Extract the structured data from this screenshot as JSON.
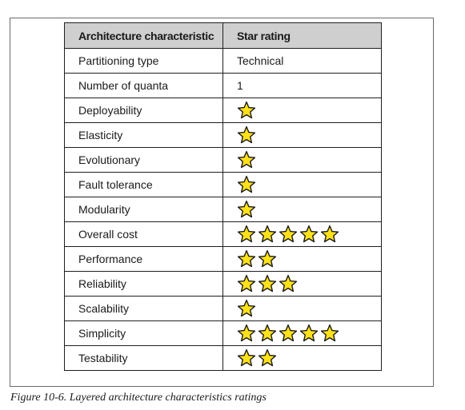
{
  "table": {
    "headers": [
      "Architecture characteristic",
      "Star rating"
    ],
    "rows": [
      {
        "characteristic": "Partitioning type",
        "value": "Technical",
        "stars": 0
      },
      {
        "characteristic": "Number of quanta",
        "value": "1",
        "stars": 0
      },
      {
        "characteristic": "Deployability",
        "value": "",
        "stars": 1
      },
      {
        "characteristic": "Elasticity",
        "value": "",
        "stars": 1
      },
      {
        "characteristic": "Evolutionary",
        "value": "",
        "stars": 1
      },
      {
        "characteristic": "Fault tolerance",
        "value": "",
        "stars": 1
      },
      {
        "characteristic": "Modularity",
        "value": "",
        "stars": 1
      },
      {
        "characteristic": "Overall cost",
        "value": "",
        "stars": 5
      },
      {
        "characteristic": "Performance",
        "value": "",
        "stars": 2
      },
      {
        "characteristic": "Reliability",
        "value": "",
        "stars": 3
      },
      {
        "characteristic": "Scalability",
        "value": "",
        "stars": 1
      },
      {
        "characteristic": "Simplicity",
        "value": "",
        "stars": 5
      },
      {
        "characteristic": "Testability",
        "value": "",
        "stars": 2
      }
    ]
  },
  "star": {
    "fill": "#ffe11a",
    "stroke": "#1a1a1a",
    "icon": "star-icon"
  },
  "caption": "Figure 10-6. Layered architecture characteristics ratings"
}
